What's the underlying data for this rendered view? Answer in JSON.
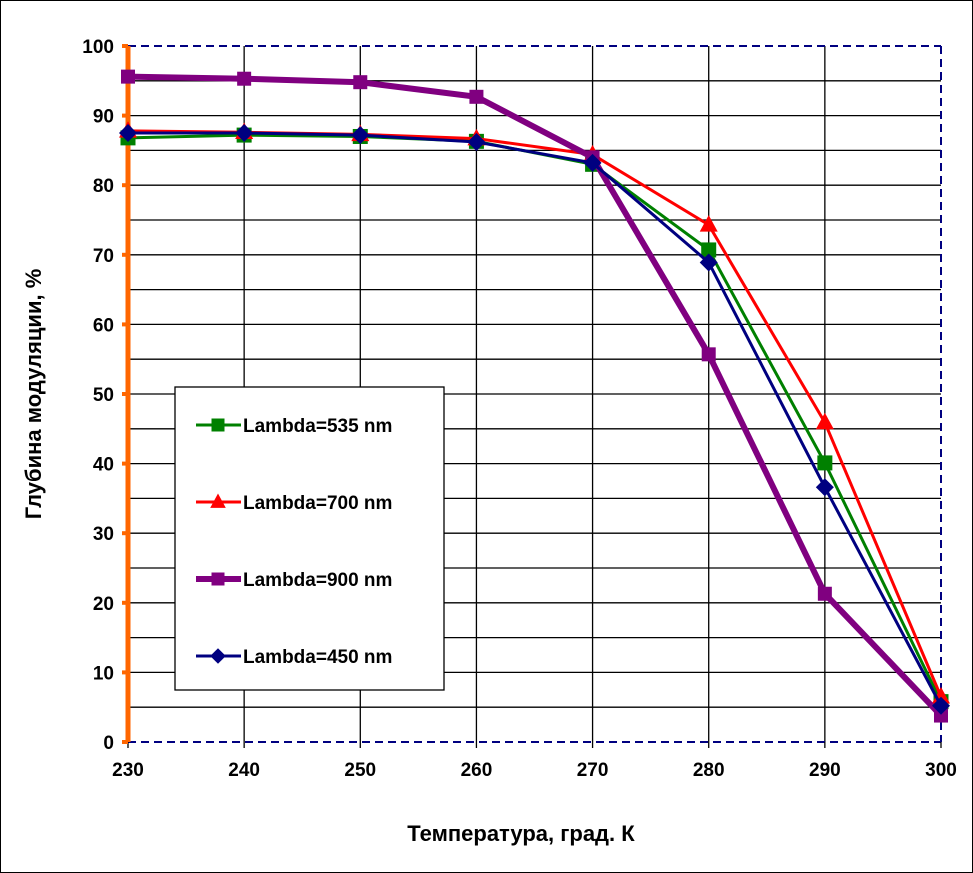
{
  "chart_data": {
    "type": "line",
    "title": "",
    "xlabel": "Температура, град. К",
    "ylabel": "Глубина модуляции, %",
    "x": [
      230,
      240,
      250,
      260,
      270,
      280,
      290,
      300
    ],
    "xlim": [
      230,
      300
    ],
    "ylim": [
      0,
      100
    ],
    "xticks": [
      "230",
      "240",
      "250",
      "260",
      "270",
      "280",
      "290",
      "300"
    ],
    "yticks": [
      "0",
      "10",
      "20",
      "30",
      "40",
      "50",
      "60",
      "70",
      "80",
      "90",
      "100"
    ],
    "grid": true,
    "legend_position": "center-left",
    "series": [
      {
        "name": "Lambda=535 nm",
        "color": "#008000",
        "marker": "square",
        "values": [
          86.8,
          87.2,
          87.0,
          86.3,
          83.0,
          70.7,
          40.1,
          5.8
        ]
      },
      {
        "name": "Lambda=700 nm",
        "color": "#ff0000",
        "marker": "triangle",
        "values": [
          87.8,
          87.6,
          87.3,
          86.7,
          84.4,
          74.3,
          45.9,
          6.5
        ]
      },
      {
        "name": "Lambda=900 nm",
        "color": "#800080",
        "marker": "square",
        "values": [
          95.6,
          95.3,
          94.8,
          92.7,
          84.0,
          55.7,
          21.3,
          3.8
        ]
      },
      {
        "name": "Lambda=450 nm",
        "color": "#000080",
        "marker": "diamond",
        "values": [
          87.5,
          87.5,
          87.2,
          86.2,
          83.2,
          68.9,
          36.6,
          5.2
        ]
      }
    ]
  }
}
